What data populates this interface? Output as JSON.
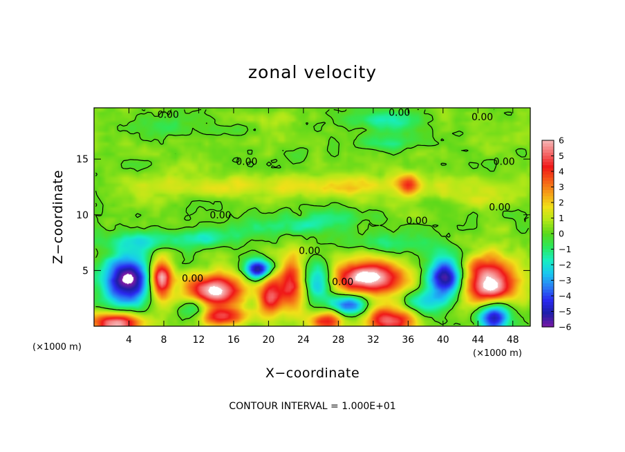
{
  "chart_data": {
    "type": "heatmap",
    "title": "zonal velocity",
    "xlabel": "X−coordinate",
    "ylabel": "Z−coordinate",
    "x_unit_left": "(×1000 m)",
    "x_unit_right": "(×1000 m)",
    "footer": "CONTOUR INTERVAL = 1.000E+01",
    "xlim": [
      0,
      50
    ],
    "ylim": [
      0,
      19.6
    ],
    "x_ticks": [
      4,
      8,
      12,
      16,
      20,
      24,
      28,
      32,
      36,
      40,
      44,
      48
    ],
    "x_tick_labels": [
      "4",
      "8",
      "12",
      "16",
      "20",
      "24",
      "28",
      "32",
      "36",
      "40",
      "44",
      "48"
    ],
    "y_ticks": [
      5,
      10,
      15
    ],
    "y_tick_labels": [
      "5",
      "10",
      "15"
    ],
    "colorbar": {
      "min": -6,
      "max": 6,
      "ticks": [
        6,
        5,
        4,
        3,
        2,
        1,
        0,
        -1,
        -2,
        -3,
        -4,
        -5,
        -6
      ],
      "tick_labels": [
        "6",
        "5",
        "4",
        "3",
        "2",
        "1",
        "0",
        "−1",
        "−2",
        "−3",
        "−4",
        "−5",
        "−6"
      ],
      "colors": [
        "#7a1aa6",
        "#1e1ea8",
        "#2a2af0",
        "#2a7df5",
        "#18c8f0",
        "#18eec0",
        "#2ae85c",
        "#5ad81a",
        "#b4e818",
        "#f0e018",
        "#f5a018",
        "#f55a18",
        "#f01818",
        "#f56a6a",
        "#f5b8b8"
      ]
    },
    "contour_labels": [
      {
        "text": "0.00",
        "x": 8.5,
        "y": 19.0
      },
      {
        "text": "0.00",
        "x": 35.0,
        "y": 19.2
      },
      {
        "text": "0.00",
        "x": 44.5,
        "y": 18.8
      },
      {
        "text": "0.00",
        "x": 17.5,
        "y": 14.8
      },
      {
        "text": "0.00",
        "x": 47.0,
        "y": 14.8
      },
      {
        "text": "0.00",
        "x": 14.5,
        "y": 10.0
      },
      {
        "text": "0.00",
        "x": 46.5,
        "y": 10.7
      },
      {
        "text": "0.00",
        "x": 37.0,
        "y": 9.5
      },
      {
        "text": "0.00",
        "x": 24.7,
        "y": 6.8
      },
      {
        "text": "0.00",
        "x": 11.3,
        "y": 4.3
      },
      {
        "text": "0.00",
        "x": 28.5,
        "y": 4.0
      }
    ],
    "features": [
      {
        "sign": "neg",
        "x": 3.8,
        "y": 4.1,
        "rx": 2.8,
        "ry": 2.4,
        "v": -6.5
      },
      {
        "sign": "pos",
        "x": 7.6,
        "y": 4.3,
        "rx": 1.3,
        "ry": 1.9,
        "v": 6.5
      },
      {
        "sign": "pos",
        "x": 13.7,
        "y": 3.2,
        "rx": 3.4,
        "ry": 1.5,
        "v": 6.5
      },
      {
        "sign": "neg",
        "x": 18.8,
        "y": 5.1,
        "rx": 1.5,
        "ry": 0.9,
        "v": -6
      },
      {
        "sign": "pos",
        "x": 20.2,
        "y": 2.8,
        "rx": 1.5,
        "ry": 1.9,
        "v": 4.5
      },
      {
        "sign": "pos",
        "x": 22.6,
        "y": 4.0,
        "rx": 1.4,
        "ry": 2.7,
        "v": 4
      },
      {
        "sign": "neg",
        "x": 25.8,
        "y": 4.3,
        "rx": 1.7,
        "ry": 1.8,
        "v": -3.5
      },
      {
        "sign": "pos",
        "x": 31.5,
        "y": 4.4,
        "rx": 4.3,
        "ry": 1.6,
        "v": 6.5
      },
      {
        "sign": "neg",
        "x": 29.2,
        "y": 2.0,
        "rx": 2.0,
        "ry": 0.9,
        "v": -4.5
      },
      {
        "sign": "neg",
        "x": 40.3,
        "y": 4.3,
        "rx": 2.2,
        "ry": 1.9,
        "v": -6
      },
      {
        "sign": "pos",
        "x": 45.2,
        "y": 4.0,
        "rx": 3.2,
        "ry": 2.3,
        "v": 6.5
      },
      {
        "sign": "neg",
        "x": 45.8,
        "y": 0.9,
        "rx": 1.9,
        "ry": 1.4,
        "v": -6
      },
      {
        "sign": "pos",
        "x": 2.4,
        "y": 0.3,
        "rx": 3.0,
        "ry": 1.0,
        "v": 6
      },
      {
        "sign": "pos",
        "x": 34.0,
        "y": 0.6,
        "rx": 3.0,
        "ry": 1.2,
        "v": 5
      },
      {
        "sign": "pos",
        "x": 26.5,
        "y": 0.5,
        "rx": 2.0,
        "ry": 0.9,
        "v": 4
      },
      {
        "sign": "pos",
        "x": 14.5,
        "y": 0.8,
        "rx": 3.0,
        "ry": 0.9,
        "v": 4
      },
      {
        "sign": "neg",
        "x": 11.5,
        "y": 1.6,
        "rx": 1.8,
        "ry": 1.2,
        "v": -3
      },
      {
        "sign": "neg",
        "x": 37.5,
        "y": 2.2,
        "rx": 2.5,
        "ry": 1.2,
        "v": -2.5
      },
      {
        "sign": "neg",
        "x": 6.5,
        "y": 7.7,
        "rx": 6.0,
        "ry": 1.0,
        "v": -2
      },
      {
        "sign": "neg",
        "x": 14.0,
        "y": 8.0,
        "rx": 4.0,
        "ry": 0.8,
        "v": -1.5
      },
      {
        "sign": "neg",
        "x": 22.0,
        "y": 9.0,
        "rx": 6.0,
        "ry": 0.8,
        "v": -1.5
      },
      {
        "sign": "neg",
        "x": 34.5,
        "y": 7.5,
        "rx": 5.0,
        "ry": 1.0,
        "v": -1.5
      },
      {
        "sign": "neg",
        "x": 33.5,
        "y": 18.5,
        "rx": 4.5,
        "ry": 1.0,
        "v": -1.8
      },
      {
        "sign": "neg",
        "x": 34.0,
        "y": 16.5,
        "rx": 3.5,
        "ry": 0.8,
        "v": -1.2
      },
      {
        "sign": "neg",
        "x": 10.0,
        "y": 17.8,
        "rx": 6.0,
        "ry": 0.9,
        "v": -0.8
      },
      {
        "sign": "neg",
        "x": 27.0,
        "y": 9.8,
        "rx": 4.0,
        "ry": 0.9,
        "v": -1.2
      },
      {
        "sign": "pos",
        "x": 30.0,
        "y": 12.6,
        "rx": 10.0,
        "ry": 1.0,
        "v": 1.6
      },
      {
        "sign": "pos",
        "x": 13.0,
        "y": 12.6,
        "rx": 10.0,
        "ry": 1.1,
        "v": 1.2
      },
      {
        "sign": "pos",
        "x": 36.0,
        "y": 12.8,
        "rx": 1.2,
        "ry": 0.9,
        "v": 2.6
      },
      {
        "sign": "pos",
        "x": 44.0,
        "y": 12.0,
        "rx": 5.0,
        "ry": 1.2,
        "v": 1.0
      },
      {
        "sign": "pos",
        "x": 18.5,
        "y": 18.6,
        "rx": 5.0,
        "ry": 0.7,
        "v": 0.7
      }
    ]
  }
}
